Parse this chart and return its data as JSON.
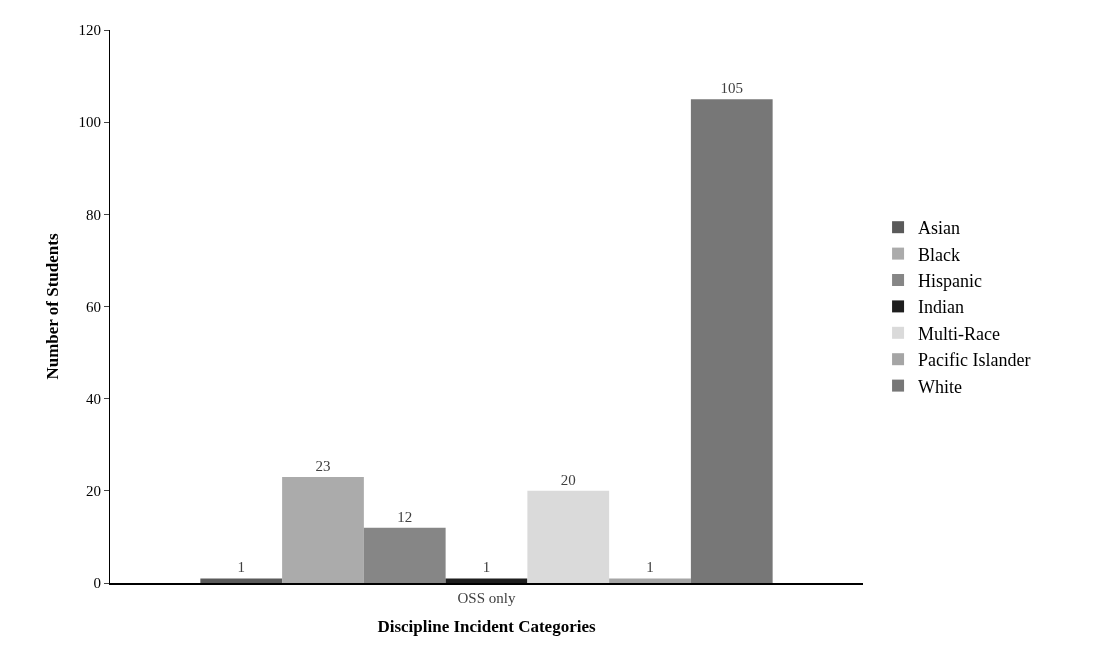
{
  "chart_data": {
    "type": "bar",
    "xlabel": "Discipline Incident Categories",
    "ylabel": "Number of Students",
    "categories": [
      "OSS only"
    ],
    "series": [
      {
        "name": "Asian",
        "color": "#5a5a5a",
        "values": [
          1
        ]
      },
      {
        "name": "Black",
        "color": "#ababab",
        "values": [
          23
        ]
      },
      {
        "name": "Hispanic",
        "color": "#868686",
        "values": [
          12
        ]
      },
      {
        "name": "Indian",
        "color": "#1e1e1e",
        "values": [
          1
        ]
      },
      {
        "name": "Multi-Race",
        "color": "#dadada",
        "values": [
          20
        ]
      },
      {
        "name": "Pacific Islander",
        "color": "#a5a5a5",
        "values": [
          1
        ]
      },
      {
        "name": "White",
        "color": "#777777",
        "values": [
          105
        ]
      }
    ],
    "ylim": [
      0,
      120
    ],
    "yticks": [
      0,
      20,
      40,
      60,
      80,
      100,
      120
    ],
    "grid": false,
    "legend": "right",
    "data_labels": true
  }
}
